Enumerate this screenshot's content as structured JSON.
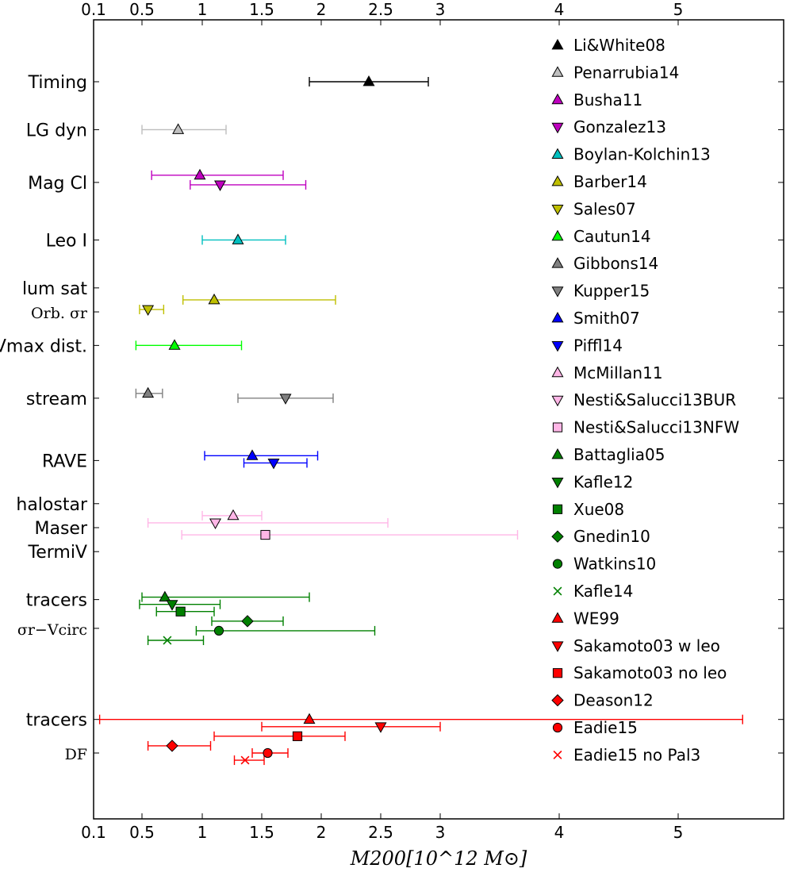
{
  "chart_data": {
    "type": "scatter",
    "title": "",
    "xlabel": "M200[10^12 M⊙]",
    "ylabel": "",
    "xlim": [
      0.1,
      5.9
    ],
    "xticks": [
      {
        "v": 0.1,
        "label": "0.1"
      },
      {
        "v": 0.5,
        "label": "0.5"
      },
      {
        "v": 1,
        "label": "1"
      },
      {
        "v": 1.5,
        "label": "1.5"
      },
      {
        "v": 2,
        "label": "2"
      },
      {
        "v": 2.5,
        "label": "2.5"
      },
      {
        "v": 3,
        "label": "3"
      },
      {
        "v": 4,
        "label": "4"
      },
      {
        "v": 5,
        "label": "5"
      }
    ],
    "grid": false,
    "legend_position": "right",
    "categories": [
      {
        "label": "Timing",
        "row": 1.0,
        "serif": false
      },
      {
        "label": "LG dyn",
        "row": 2.0,
        "serif": false
      },
      {
        "label": "Mag Cl",
        "row": 3.1,
        "serif": false
      },
      {
        "label": "Leo I",
        "row": 4.3,
        "serif": false
      },
      {
        "label": "lum sat",
        "row": 5.3,
        "serif": false
      },
      {
        "label": "Orb. σr",
        "row": 5.8,
        "serif": true
      },
      {
        "label": "Vmax dist.",
        "row": 6.5,
        "serif": false
      },
      {
        "label": "stream",
        "row": 7.6,
        "serif": false
      },
      {
        "label": "RAVE",
        "row": 8.9,
        "serif": false
      },
      {
        "label": "halostar",
        "row": 9.8,
        "serif": false
      },
      {
        "label": "Maser",
        "row": 10.3,
        "serif": false
      },
      {
        "label": "TermiV",
        "row": 10.8,
        "serif": false
      },
      {
        "label": "tracers",
        "row": 11.8,
        "serif": false
      },
      {
        "label": "σr−Vcirc",
        "row": 12.4,
        "serif": true
      },
      {
        "label": "tracers",
        "row": 14.3,
        "serif": false
      },
      {
        "label": "DF",
        "row": 15.0,
        "serif": true
      }
    ],
    "series": [
      {
        "name": "Li&White08",
        "marker": "triangle-up",
        "color": "#000000",
        "edge": "#000000",
        "errcolor": "#000000",
        "row": 1.0,
        "x": 2.4,
        "lo": 1.9,
        "hi": 2.9
      },
      {
        "name": "Penarrubia14",
        "marker": "triangle-up",
        "color": "#c0c0c0",
        "edge": "#000000",
        "errcolor": "#bdbdbd",
        "row": 2.0,
        "x": 0.8,
        "lo": 0.5,
        "hi": 1.2
      },
      {
        "name": "Busha11",
        "marker": "triangle-up",
        "color": "#bf00bf",
        "edge": "#000000",
        "errcolor": "#bf00bf",
        "row": 2.95,
        "x": 0.98,
        "lo": 0.58,
        "hi": 1.68
      },
      {
        "name": "Gonzalez13",
        "marker": "triangle-down",
        "color": "#bf00bf",
        "edge": "#000000",
        "errcolor": "#bf00bf",
        "row": 3.15,
        "x": 1.15,
        "lo": 0.9,
        "hi": 1.87
      },
      {
        "name": "Boylan-Kolchin13",
        "marker": "triangle-up",
        "color": "#00bfbf",
        "edge": "#000000",
        "errcolor": "#00bfbf",
        "row": 4.3,
        "x": 1.3,
        "lo": 1.0,
        "hi": 1.7
      },
      {
        "name": "Barber14",
        "marker": "triangle-up",
        "color": "#bfbf00",
        "edge": "#000000",
        "errcolor": "#bfbf00",
        "row": 5.55,
        "x": 1.1,
        "lo": 0.84,
        "hi": 2.12
      },
      {
        "name": "Sales07",
        "marker": "triangle-down",
        "color": "#bfbf00",
        "edge": "#000000",
        "errcolor": "#bfbf00",
        "row": 5.75,
        "x": 0.55,
        "lo": 0.48,
        "hi": 0.68
      },
      {
        "name": "Cautun14",
        "marker": "triangle-up",
        "color": "#00ff00",
        "edge": "#000000",
        "errcolor": "#00ff00",
        "row": 6.5,
        "x": 0.77,
        "lo": 0.45,
        "hi": 1.33
      },
      {
        "name": "Gibbons14",
        "marker": "triangle-up",
        "color": "#808080",
        "edge": "#000000",
        "errcolor": "#808080",
        "row": 7.5,
        "x": 0.55,
        "lo": 0.45,
        "hi": 0.67
      },
      {
        "name": "Kupper15",
        "marker": "triangle-down",
        "color": "#808080",
        "edge": "#000000",
        "errcolor": "#808080",
        "row": 7.6,
        "x": 1.7,
        "lo": 1.3,
        "hi": 2.1
      },
      {
        "name": "Smith07",
        "marker": "triangle-up",
        "color": "#0000ff",
        "edge": "#000000",
        "errcolor": "#0000ff",
        "row": 8.8,
        "x": 1.42,
        "lo": 1.02,
        "hi": 1.97
      },
      {
        "name": "Piffl14",
        "marker": "triangle-down",
        "color": "#0000ff",
        "edge": "#000000",
        "errcolor": "#0000ff",
        "row": 8.95,
        "x": 1.6,
        "lo": 1.35,
        "hi": 1.88
      },
      {
        "name": "McMillan11",
        "marker": "triangle-up",
        "color": "#ffb6e6",
        "edge": "#000000",
        "errcolor": "#ffb6e6",
        "row": 10.05,
        "x": 1.26,
        "lo": 1.0,
        "hi": 1.5
      },
      {
        "name": "Nesti&Salucci13BUR",
        "marker": "triangle-down",
        "color": "#ffb6e6",
        "edge": "#000000",
        "errcolor": "#ffb6e6",
        "row": 10.2,
        "x": 1.11,
        "lo": 0.55,
        "hi": 2.56
      },
      {
        "name": "Nesti&Salucci13NFW",
        "marker": "square",
        "color": "#ffb6e6",
        "edge": "#000000",
        "errcolor": "#ffb6e6",
        "row": 10.45,
        "x": 1.53,
        "lo": 0.83,
        "hi": 3.65
      },
      {
        "name": "Battaglia05",
        "marker": "triangle-up",
        "color": "#008000",
        "edge": "#000000",
        "errcolor": "#008000",
        "row": 11.75,
        "x": 0.69,
        "lo": 0.5,
        "hi": 1.9
      },
      {
        "name": "Kafle12",
        "marker": "triangle-down",
        "color": "#008000",
        "edge": "#000000",
        "errcolor": "#008000",
        "row": 11.9,
        "x": 0.75,
        "lo": 0.48,
        "hi": 1.15
      },
      {
        "name": "Xue08",
        "marker": "square",
        "color": "#008000",
        "edge": "#000000",
        "errcolor": "#008000",
        "row": 12.05,
        "x": 0.82,
        "lo": 0.62,
        "hi": 1.1
      },
      {
        "name": "Gnedin10",
        "marker": "diamond",
        "color": "#008000",
        "edge": "#000000",
        "errcolor": "#008000",
        "row": 12.25,
        "x": 1.38,
        "lo": 1.08,
        "hi": 1.68
      },
      {
        "name": "Watkins10",
        "marker": "circle",
        "color": "#008000",
        "edge": "#000000",
        "errcolor": "#008000",
        "row": 12.45,
        "x": 1.14,
        "lo": 0.95,
        "hi": 2.45
      },
      {
        "name": "Kafle14",
        "marker": "x",
        "color": "#008000",
        "edge": "#008000",
        "errcolor": "#008000",
        "row": 12.65,
        "x": 0.71,
        "lo": 0.55,
        "hi": 1.01
      },
      {
        "name": "WE99",
        "marker": "triangle-up",
        "color": "#ff0000",
        "edge": "#000000",
        "errcolor": "#ff0000",
        "row": 14.3,
        "x": 1.9,
        "lo": 0.15,
        "hi": 5.55
      },
      {
        "name": "Sakamoto03 w leo",
        "marker": "triangle-down",
        "color": "#ff0000",
        "edge": "#000000",
        "errcolor": "#ff0000",
        "row": 14.45,
        "x": 2.5,
        "lo": 1.5,
        "hi": 3.0
      },
      {
        "name": "Sakamoto03 no leo",
        "marker": "square",
        "color": "#ff0000",
        "edge": "#000000",
        "errcolor": "#ff0000",
        "row": 14.65,
        "x": 1.8,
        "lo": 1.1,
        "hi": 2.2
      },
      {
        "name": "Deason12",
        "marker": "diamond",
        "color": "#ff0000",
        "edge": "#000000",
        "errcolor": "#ff0000",
        "row": 14.85,
        "x": 0.75,
        "lo": 0.55,
        "hi": 1.07
      },
      {
        "name": "Eadie15",
        "marker": "circle",
        "color": "#ff0000",
        "edge": "#000000",
        "errcolor": "#ff0000",
        "row": 15.0,
        "x": 1.55,
        "lo": 1.42,
        "hi": 1.72
      },
      {
        "name": "Eadie15 no Pal3",
        "marker": "x",
        "color": "#ff0000",
        "edge": "#ff0000",
        "errcolor": "#ff0000",
        "row": 15.15,
        "x": 1.36,
        "lo": 1.27,
        "hi": 1.52
      }
    ]
  }
}
